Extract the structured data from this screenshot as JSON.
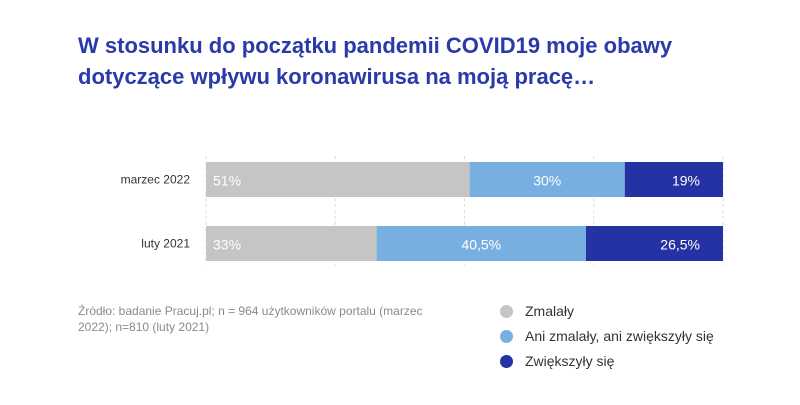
{
  "title": {
    "line1": "W stosunku do początku pandemii COVID19 moje obawy",
    "line2": "dotyczące wpływu koronawirusa na moją pracę…"
  },
  "source": "Źródło: badanie Pracuj.pl; n = 964 użytkowników portalu (marzec 2022); n=810 (luty 2021)",
  "colors": {
    "zmalaly": "#c5c5c5",
    "ani": "#77b0e0",
    "zwiekszyly": "#2532a3",
    "grid": "#dcdcdc",
    "title": "#2a3aa8"
  },
  "chart_data": {
    "type": "bar",
    "orientation": "horizontal",
    "stacked": true,
    "categories": [
      "marzec 2022",
      "luty 2021"
    ],
    "series": [
      {
        "name": "Zmalały",
        "values": [
          51,
          33
        ],
        "labels": [
          "51%",
          "33%"
        ],
        "color": "#c5c5c5"
      },
      {
        "name": "Ani zmalały, ani zwiększyły się",
        "values": [
          30,
          40.5
        ],
        "labels": [
          "30%",
          "40,5%"
        ],
        "color": "#77b0e0"
      },
      {
        "name": "Zwiększyły się",
        "values": [
          19,
          26.5
        ],
        "labels": [
          "19%",
          "26,5%"
        ],
        "color": "#2532a3"
      }
    ],
    "xlim": [
      0,
      100
    ],
    "grid": true,
    "legend": [
      "Zmalały",
      "Ani zmalały, ani zwiększyły się",
      "Zwiększyły się"
    ],
    "legend_position": "bottom-right"
  }
}
